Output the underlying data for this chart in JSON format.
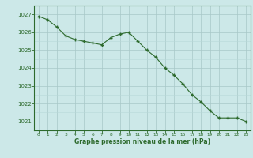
{
  "x": [
    0,
    1,
    2,
    3,
    4,
    5,
    6,
    7,
    8,
    9,
    10,
    11,
    12,
    13,
    14,
    15,
    16,
    17,
    18,
    19,
    20,
    21,
    22,
    23
  ],
  "y": [
    1026.9,
    1026.7,
    1026.3,
    1025.8,
    1025.6,
    1025.5,
    1025.4,
    1025.3,
    1025.7,
    1025.9,
    1026.0,
    1025.5,
    1025.0,
    1024.6,
    1024.0,
    1023.6,
    1023.1,
    1022.5,
    1022.1,
    1021.6,
    1021.2,
    1021.2,
    1021.2,
    1021.0
  ],
  "line_color": "#2d6a2d",
  "marker": "+",
  "marker_size": 3.5,
  "marker_lw": 1.0,
  "bg_color": "#cce8e8",
  "grid_minor_color": "#b8d8d8",
  "grid_major_color": "#a8c8c8",
  "xlabel": "Graphe pression niveau de la mer (hPa)",
  "xlabel_color": "#2d6a2d",
  "tick_color": "#2d6a2d",
  "ylim": [
    1020.5,
    1027.5
  ],
  "yticks": [
    1021,
    1022,
    1023,
    1024,
    1025,
    1026,
    1027
  ],
  "xlim": [
    -0.5,
    23.5
  ],
  "xticks": [
    0,
    1,
    2,
    3,
    4,
    5,
    6,
    7,
    8,
    9,
    10,
    11,
    12,
    13,
    14,
    15,
    16,
    17,
    18,
    19,
    20,
    21,
    22,
    23
  ],
  "line_width": 0.8
}
